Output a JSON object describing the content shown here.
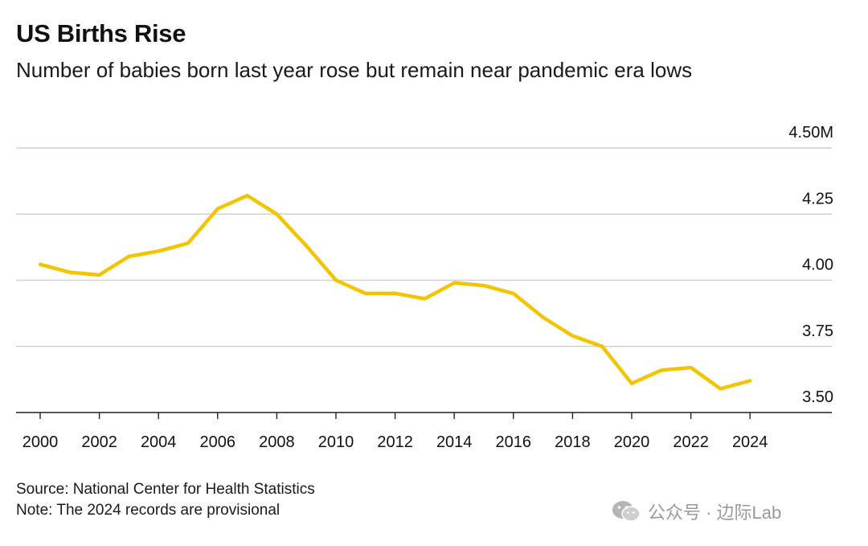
{
  "header": {
    "title": "US Births Rise",
    "subtitle": "Number of babies born last year rose but remain near pandemic era lows"
  },
  "footer": {
    "source": "Source: National Center for Health Statistics",
    "note": "Note: The 2024 records are provisional"
  },
  "watermark": {
    "text": "公众号 · 边际Lab",
    "icon": "wechat-icon"
  },
  "colors": {
    "line": "#F5C400",
    "grid": "#d0d0d0",
    "axis": "#222222",
    "text": "#111111"
  },
  "chart_data": {
    "type": "line",
    "title": "US Births Rise",
    "subtitle": "Number of babies born last year rose but remain near pandemic era lows",
    "xlabel": "",
    "ylabel": "",
    "x": [
      2000,
      2001,
      2002,
      2003,
      2004,
      2005,
      2006,
      2007,
      2008,
      2009,
      2010,
      2011,
      2012,
      2013,
      2014,
      2015,
      2016,
      2017,
      2018,
      2019,
      2020,
      2021,
      2022,
      2023,
      2024
    ],
    "series": [
      {
        "values": [
          4.06,
          4.03,
          4.02,
          4.09,
          4.11,
          4.14,
          4.27,
          4.32,
          4.25,
          4.13,
          4.0,
          3.95,
          3.95,
          3.93,
          3.99,
          3.98,
          3.95,
          3.86,
          3.79,
          3.75,
          3.61,
          3.66,
          3.67,
          3.59,
          3.62
        ]
      }
    ],
    "ylim": [
      3.5,
      4.5
    ],
    "yticks": [
      3.5,
      3.75,
      4.0,
      4.25,
      4.5
    ],
    "ytick_labels": [
      "3.50",
      "3.75",
      "4.00",
      "4.25",
      "4.50M"
    ],
    "xticks": [
      2000,
      2002,
      2004,
      2006,
      2008,
      2010,
      2012,
      2014,
      2016,
      2018,
      2020,
      2022,
      2024
    ],
    "xtick_labels": [
      "2000",
      "2002",
      "2004",
      "2006",
      "2008",
      "2010",
      "2012",
      "2014",
      "2016",
      "2018",
      "2020",
      "2022",
      "2024"
    ],
    "grid": true,
    "y_axis_position": "right"
  }
}
